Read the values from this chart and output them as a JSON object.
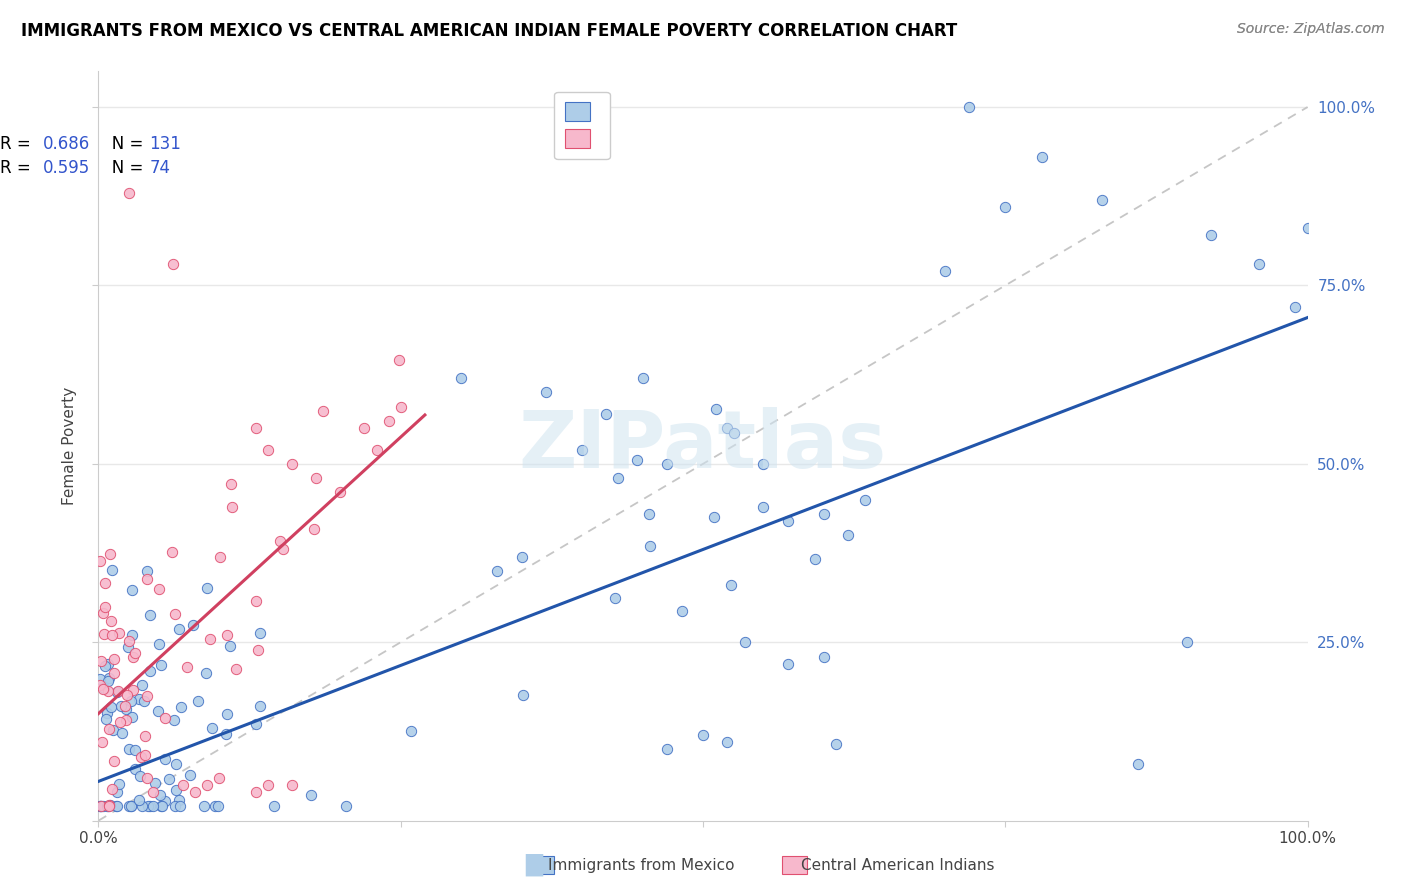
{
  "title": "IMMIGRANTS FROM MEXICO VS CENTRAL AMERICAN INDIAN FEMALE POVERTY CORRELATION CHART",
  "source": "Source: ZipAtlas.com",
  "ylabel": "Female Poverty",
  "watermark": "ZIPatlas",
  "blue_R": 0.686,
  "blue_N": 131,
  "pink_R": 0.595,
  "pink_N": 74,
  "blue_fill": "#aecde8",
  "pink_fill": "#f7b8cc",
  "blue_edge": "#4472c4",
  "pink_edge": "#e05070",
  "diag_color": "#c0c0c0",
  "blue_line_color": "#2255aa",
  "pink_line_color": "#d04060",
  "legend_label_blue": "Immigrants from Mexico",
  "legend_label_pink": "Central American Indians",
  "R_N_color": "#3355cc",
  "grid_color": "#e8e8e8",
  "title_fontsize": 12,
  "source_fontsize": 10,
  "right_tick_color": "#4472c4",
  "blue_intercept": 0.055,
  "blue_slope": 0.65,
  "pink_intercept": 0.15,
  "pink_slope": 1.55
}
